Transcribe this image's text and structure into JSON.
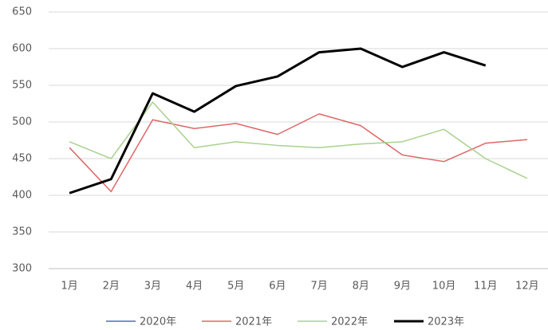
{
  "chart_data": {
    "type": "line",
    "categories": [
      "1月",
      "2月",
      "3月",
      "4月",
      "5月",
      "6月",
      "7月",
      "8月",
      "9月",
      "10月",
      "11月",
      "12月"
    ],
    "series": [
      {
        "name": "2020年",
        "color": "#4472c4",
        "values": [
          null,
          null,
          null,
          null,
          null,
          null,
          null,
          null,
          null,
          null,
          null,
          null
        ]
      },
      {
        "name": "2021年",
        "color": "#e06666",
        "values": [
          465,
          405,
          503,
          491,
          498,
          483,
          511,
          495,
          455,
          446,
          471,
          476
        ]
      },
      {
        "name": "2022年",
        "color": "#a9d18e",
        "values": [
          473,
          450,
          527,
          465,
          473,
          468,
          465,
          470,
          473,
          490,
          450,
          423
        ]
      },
      {
        "name": "2023年",
        "color": "#000000",
        "values": [
          403,
          422,
          539,
          514,
          549,
          562,
          595,
          600,
          575,
          595,
          577,
          null
        ]
      }
    ],
    "ylim": [
      300,
      650
    ],
    "yticks": [
      300,
      350,
      400,
      450,
      500,
      550,
      600,
      650
    ],
    "grid": true
  }
}
